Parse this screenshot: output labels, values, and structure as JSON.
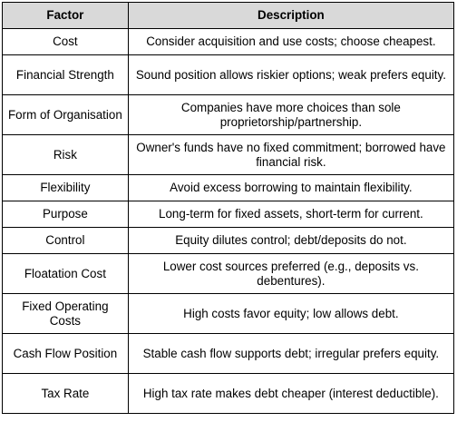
{
  "table": {
    "headers": [
      "Factor",
      "Description"
    ],
    "rows": [
      {
        "factor": "Cost",
        "description": "Consider acquisition and use costs; choose cheapest."
      },
      {
        "factor": "Financial Strength",
        "description": "Sound position allows riskier options; weak prefers equity."
      },
      {
        "factor": "Form of Organisation",
        "description": "Companies have more choices than sole proprietorship/partnership."
      },
      {
        "factor": "Risk",
        "description": "Owner's funds have no fixed commitment; borrowed have financial risk."
      },
      {
        "factor": "Flexibility",
        "description": "Avoid excess borrowing to maintain flexibility."
      },
      {
        "factor": "Purpose",
        "description": "Long-term for fixed assets, short-term for current."
      },
      {
        "factor": "Control",
        "description": "Equity dilutes control; debt/deposits do not."
      },
      {
        "factor": "Floatation Cost",
        "description": "Lower cost sources preferred (e.g., deposits vs. debentures)."
      },
      {
        "factor": "Fixed Operating Costs",
        "description": "High costs favor equity; low allows debt."
      },
      {
        "factor": "Cash Flow Position",
        "description": "Stable cash flow supports debt; irregular prefers equity."
      },
      {
        "factor": "Tax Rate",
        "description": "High tax rate makes debt cheaper (interest deductible)."
      }
    ]
  }
}
